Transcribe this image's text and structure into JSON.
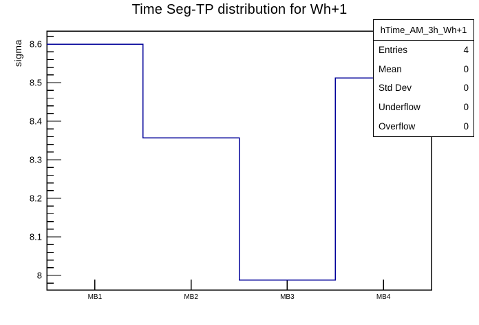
{
  "title": "Time Seg-TP distribution for Wh+1",
  "chart_data": {
    "type": "step-histogram",
    "histogram_name": "hTime_AM_3h_Wh+1",
    "title": "Time Seg-TP distribution for Wh+1",
    "categories": [
      "MB1",
      "MB2",
      "MB3",
      "MB4"
    ],
    "values": [
      8.6,
      8.357,
      7.988,
      8.512
    ],
    "xlabel": "",
    "ylabel": "sigma",
    "ylim": [
      7.9625,
      8.634
    ],
    "yticks": [
      {
        "v": 8.0,
        "label": "8"
      },
      {
        "v": 8.1,
        "label": "8.1"
      },
      {
        "v": 8.2,
        "label": "8.2"
      },
      {
        "v": 8.3,
        "label": "8.3"
      },
      {
        "v": 8.4,
        "label": "8.4"
      },
      {
        "v": 8.5,
        "label": "8.5"
      },
      {
        "v": 8.6,
        "label": "8.6"
      }
    ],
    "minor_tick_step": 0.02,
    "minor_per_major": 5,
    "grid": false,
    "legend_position": "top-right"
  },
  "stats_box": {
    "title": "hTime_AM_3h_Wh+1",
    "rows": [
      {
        "label": "Entries",
        "value": "4"
      },
      {
        "label": "Mean",
        "value": "0"
      },
      {
        "label": "Std Dev",
        "value": "0"
      },
      {
        "label": "Underflow",
        "value": "0"
      },
      {
        "label": "Overflow",
        "value": "0"
      }
    ]
  },
  "colors": {
    "line": "#000099",
    "frame": "#000000",
    "text": "#000000",
    "background": "#ffffff"
  }
}
